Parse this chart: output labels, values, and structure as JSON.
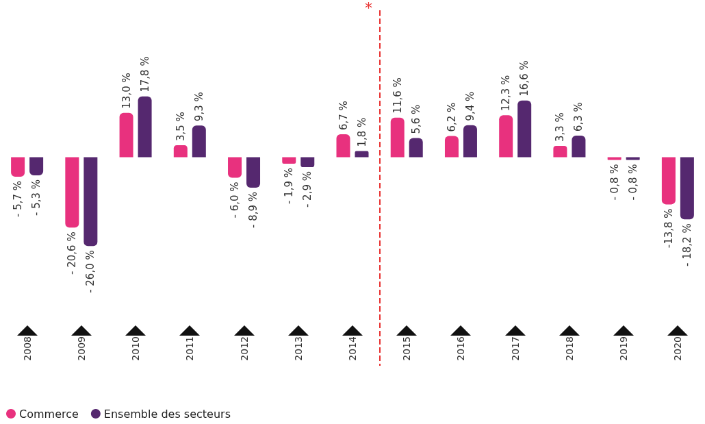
{
  "chart_data": {
    "type": "bar",
    "categories": [
      "2008",
      "2009",
      "2010",
      "2011",
      "2012",
      "2013",
      "2014",
      "2015",
      "2016",
      "2017",
      "2018",
      "2019",
      "2020"
    ],
    "series": [
      {
        "name": "Commerce",
        "color": "#e8317e",
        "values": [
          -5.7,
          -20.6,
          13.0,
          3.5,
          -6.0,
          -1.9,
          6.7,
          11.6,
          6.2,
          12.3,
          3.3,
          -0.8,
          -13.8
        ],
        "value_labels": [
          "- 5,7 %",
          "- 20,6 %",
          "13,0 %",
          "3,5 %",
          "- 6,0 %",
          "- 1,9 %",
          "6,7 %",
          "11,6 %",
          "6,2 %",
          "12,3 %",
          "3,3 %",
          "- 0,8 %",
          "-13,8 %"
        ]
      },
      {
        "name": "Ensemble des secteurs",
        "color": "#55286f",
        "values": [
          -5.3,
          -26.0,
          17.8,
          9.3,
          -8.9,
          -2.9,
          1.8,
          5.6,
          9.4,
          16.6,
          6.3,
          -0.8,
          -18.2
        ],
        "value_labels": [
          "- 5,3 %",
          "- 26,0 %",
          "17,8 %",
          "9,3 %",
          "- 8,9 %",
          "- 2,9 %",
          "1,8 %",
          "5,6 %",
          "9,4 %",
          "16,6 %",
          "6,3 %",
          "- 0,8 %",
          "- 18,2 %"
        ]
      }
    ],
    "ref_lines": [
      {
        "axis": "x",
        "value": "2015",
        "label": "*",
        "color": "#e8302f",
        "line_style": "dashed"
      }
    ],
    "legend": "bottom left",
    "grid": false
  }
}
